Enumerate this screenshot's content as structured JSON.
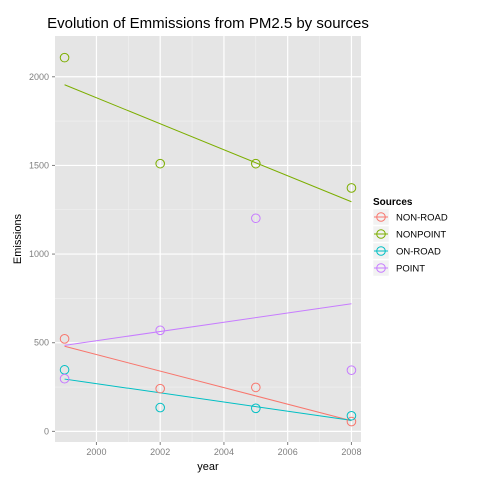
{
  "chart_data": {
    "type": "scatter",
    "title": "Evolution of Emmissions from PM2.5 by sources",
    "xlabel": "year",
    "ylabel": "Emissions",
    "xlim": [
      1998.7,
      2008.3
    ],
    "ylim": [
      -60,
      2230
    ],
    "x_ticks": [
      2000,
      2002,
      2004,
      2006,
      2008
    ],
    "y_ticks": [
      0,
      500,
      1000,
      1500,
      2000
    ],
    "grid": true,
    "legend": {
      "title": "Sources",
      "position": "right"
    },
    "series": [
      {
        "name": "NON-ROAD",
        "color": "#F8766D",
        "x": [
          1999,
          2002,
          2005,
          2008
        ],
        "y": [
          522,
          241,
          248,
          55
        ],
        "trend": [
          [
            1999,
            480
          ],
          [
            2008,
            60
          ]
        ]
      },
      {
        "name": "NONPOINT",
        "color": "#7CAE00",
        "x": [
          1999,
          2002,
          2005,
          2008
        ],
        "y": [
          2108,
          1510,
          1510,
          1373
        ],
        "trend": [
          [
            1999,
            1955
          ],
          [
            2008,
            1295
          ]
        ]
      },
      {
        "name": "ON-ROAD",
        "color": "#00BFC4",
        "x": [
          1999,
          2002,
          2005,
          2008
        ],
        "y": [
          347,
          134,
          130,
          88
        ],
        "trend": [
          [
            1999,
            295
          ],
          [
            2008,
            62
          ]
        ]
      },
      {
        "name": "POINT",
        "color": "#C77CFF",
        "x": [
          1999,
          2002,
          2005,
          2008
        ],
        "y": [
          297,
          570,
          1202,
          345
        ],
        "trend": [
          [
            1999,
            485
          ],
          [
            2008,
            720
          ]
        ]
      }
    ]
  }
}
